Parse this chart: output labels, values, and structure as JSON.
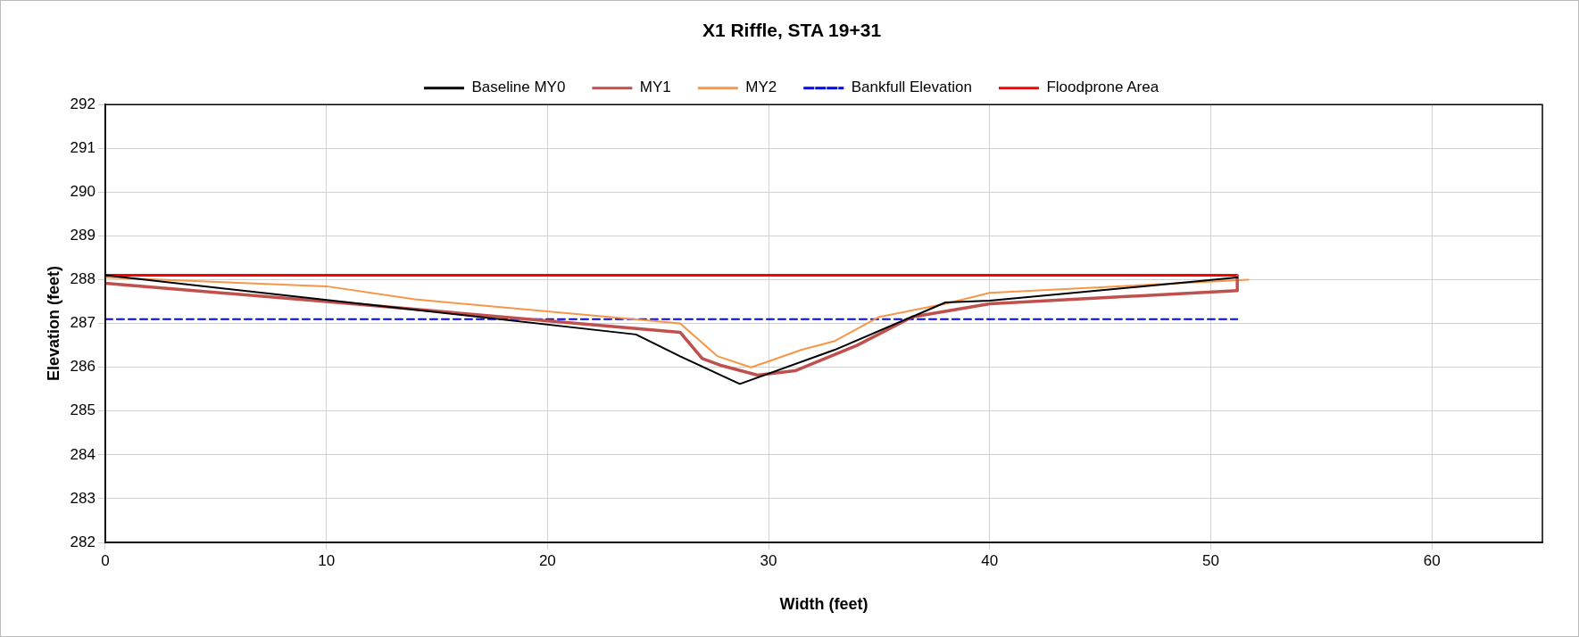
{
  "chart_data": {
    "type": "line",
    "title": "X1 Riffle, STA 19+31",
    "xlabel": "Width (feet)",
    "ylabel": "Elevation (feet)",
    "xlim": [
      0,
      65
    ],
    "xticks": [
      0,
      10,
      20,
      30,
      40,
      50,
      60
    ],
    "ylim": [
      282,
      292
    ],
    "yticks": [
      282,
      283,
      284,
      285,
      286,
      287,
      288,
      289,
      290,
      291,
      292
    ],
    "grid": true,
    "legend": "top",
    "marker": "none",
    "series": [
      {
        "name": "Baseline MY0",
        "color": "#000000",
        "x": [
          0,
          24,
          26,
          28.7,
          33,
          38,
          40,
          51.2
        ],
        "values": [
          288.1,
          286.75,
          286.25,
          285.62,
          286.4,
          287.48,
          287.52,
          288.05
        ]
      },
      {
        "name": "MY1",
        "color": "#c0504d",
        "x": [
          0,
          10,
          26,
          27,
          27.8,
          29.5,
          31.2,
          34,
          36.5,
          40,
          51.2,
          51.2
        ],
        "values": [
          287.92,
          287.5,
          286.8,
          286.2,
          286.05,
          285.82,
          285.92,
          286.5,
          287.15,
          287.45,
          287.75,
          288.08
        ]
      },
      {
        "name": "MY2",
        "color": "#f79646",
        "x": [
          0,
          10,
          14,
          26,
          27.7,
          29.2,
          29.8,
          31.5,
          33,
          35,
          38,
          40,
          51.7
        ],
        "values": [
          288.05,
          287.85,
          287.55,
          287.0,
          286.25,
          286.0,
          286.1,
          286.4,
          286.6,
          287.15,
          287.45,
          287.7,
          288.0
        ]
      },
      {
        "name": "Bankfull Elevation",
        "color": "#0000ff",
        "line_style": "dashed",
        "x": [
          0,
          51.2
        ],
        "values": [
          287.1,
          287.1
        ]
      },
      {
        "name": "Floodprone Area",
        "color": "#ff0000",
        "x": [
          0,
          51.2
        ],
        "values": [
          288.1,
          288.1
        ]
      }
    ]
  }
}
